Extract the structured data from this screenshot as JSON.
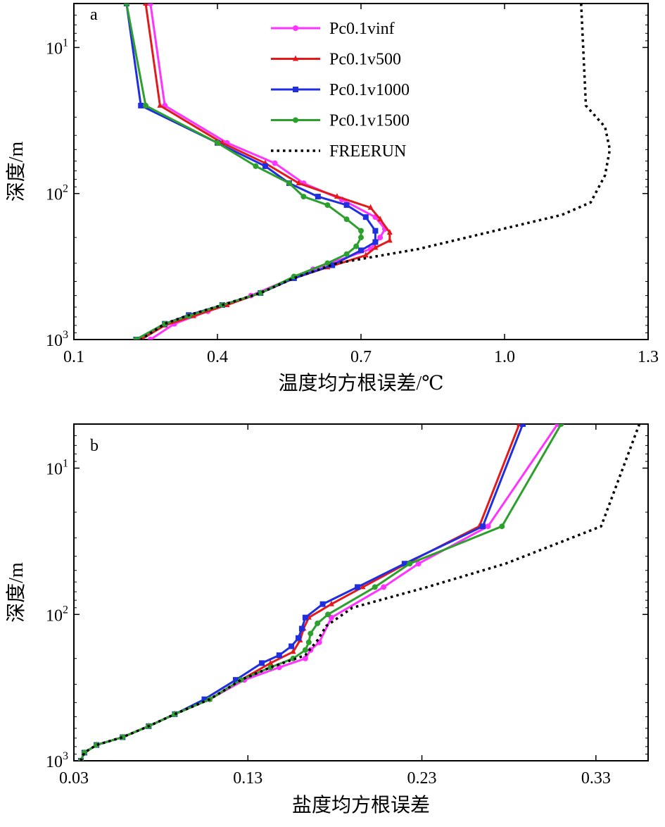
{
  "chart_data": [
    {
      "panel": "a",
      "type": "line",
      "xlabel": "温度均方根误差/℃",
      "ylabel": "深度/m",
      "xlim": [
        0.1,
        1.3
      ],
      "xticks": [
        "0.1",
        "0.4",
        "0.7",
        "1.0",
        "1.3"
      ],
      "ylim": [
        5,
        1000
      ],
      "yscale": "log",
      "yinverted": true,
      "yticks": [
        {
          "value": 10,
          "base": "10",
          "exp": "1"
        },
        {
          "value": 100,
          "base": "10",
          "exp": "2"
        },
        {
          "value": 1000,
          "base": "10",
          "exp": "3"
        }
      ],
      "legend": "top-center",
      "series": [
        {
          "name": "Pc0.1vinf",
          "color": "#ff33ff",
          "marker": "circle",
          "style": "solid",
          "points": [
            [
              0.26,
              5
            ],
            [
              0.29,
              25
            ],
            [
              0.42,
              45
            ],
            [
              0.52,
              62
            ],
            [
              0.58,
              85
            ],
            [
              0.66,
              110
            ],
            [
              0.73,
              145
            ],
            [
              0.75,
              175
            ],
            [
              0.74,
              200
            ],
            [
              0.72,
              240
            ],
            [
              0.6,
              330
            ],
            [
              0.47,
              500
            ],
            [
              0.38,
              640
            ],
            [
              0.31,
              780
            ],
            [
              0.26,
              1000
            ]
          ]
        },
        {
          "name": "Pc0.1v500",
          "color": "#e31a1c",
          "marker": "triangle",
          "style": "solid",
          "points": [
            [
              0.25,
              5
            ],
            [
              0.28,
              25
            ],
            [
              0.41,
              45
            ],
            [
              0.5,
              62
            ],
            [
              0.57,
              85
            ],
            [
              0.65,
              105
            ],
            [
              0.72,
              125
            ],
            [
              0.74,
              150
            ],
            [
              0.76,
              185
            ],
            [
              0.76,
              210
            ],
            [
              0.73,
              235
            ],
            [
              0.71,
              265
            ],
            [
              0.63,
              320
            ],
            [
              0.56,
              380
            ],
            [
              0.49,
              480
            ],
            [
              0.42,
              580
            ],
            [
              0.35,
              690
            ],
            [
              0.29,
              800
            ],
            [
              0.24,
              1000
            ]
          ]
        },
        {
          "name": "Pc0.1v1000",
          "color": "#1f2fe0",
          "marker": "square",
          "style": "solid",
          "points": [
            [
              0.21,
              5
            ],
            [
              0.24,
              25
            ],
            [
              0.4,
              45
            ],
            [
              0.5,
              65
            ],
            [
              0.55,
              85
            ],
            [
              0.61,
              105
            ],
            [
              0.67,
              120
            ],
            [
              0.71,
              145
            ],
            [
              0.73,
              180
            ],
            [
              0.73,
              215
            ],
            [
              0.7,
              245
            ],
            [
              0.64,
              310
            ],
            [
              0.56,
              380
            ],
            [
              0.49,
              480
            ],
            [
              0.41,
              580
            ],
            [
              0.34,
              680
            ],
            [
              0.29,
              780
            ],
            [
              0.23,
              1000
            ]
          ]
        },
        {
          "name": "Pc0.1v1500",
          "color": "#2ca02c",
          "marker": "circle",
          "style": "solid",
          "points": [
            [
              0.21,
              5
            ],
            [
              0.25,
              25
            ],
            [
              0.4,
              45
            ],
            [
              0.48,
              65
            ],
            [
              0.55,
              85
            ],
            [
              0.58,
              105
            ],
            [
              0.63,
              120
            ],
            [
              0.67,
              150
            ],
            [
              0.7,
              180
            ],
            [
              0.7,
              200
            ],
            [
              0.69,
              230
            ],
            [
              0.67,
              260
            ],
            [
              0.63,
              300
            ],
            [
              0.56,
              370
            ],
            [
              0.49,
              480
            ],
            [
              0.41,
              580
            ],
            [
              0.34,
              690
            ],
            [
              0.29,
              780
            ],
            [
              0.23,
              1000
            ]
          ]
        },
        {
          "name": "FREERUN",
          "color": "#000000",
          "marker": "none",
          "style": "dotted",
          "points": [
            [
              1.16,
              5
            ],
            [
              1.17,
              25
            ],
            [
              1.21,
              35
            ],
            [
              1.22,
              50
            ],
            [
              1.21,
              75
            ],
            [
              1.18,
              115
            ],
            [
              1.12,
              140
            ],
            [
              0.98,
              180
            ],
            [
              0.82,
              240
            ],
            [
              0.65,
              300
            ],
            [
              0.56,
              380
            ],
            [
              0.49,
              480
            ],
            [
              0.41,
              580
            ],
            [
              0.34,
              680
            ],
            [
              0.29,
              780
            ],
            [
              0.24,
              1000
            ]
          ]
        }
      ]
    },
    {
      "panel": "b",
      "type": "line",
      "xlabel": "盐度均方根误差",
      "ylabel": "深度/m",
      "xlim": [
        0.03,
        0.36
      ],
      "xticks": [
        "0.03",
        "0.13",
        "0.23",
        "0.33"
      ],
      "ylim": [
        5,
        1000
      ],
      "yscale": "log",
      "yinverted": true,
      "yticks": [
        {
          "value": 10,
          "base": "10",
          "exp": "1"
        },
        {
          "value": 100,
          "base": "10",
          "exp": "2"
        },
        {
          "value": 1000,
          "base": "10",
          "exp": "3"
        }
      ],
      "series": [
        {
          "name": "Pc0.1vinf",
          "color": "#ff33ff",
          "marker": "circle",
          "style": "solid",
          "points": [
            [
              0.308,
              5
            ],
            [
              0.268,
              25
            ],
            [
              0.228,
              45
            ],
            [
              0.208,
              65
            ],
            [
              0.178,
              105
            ],
            [
              0.171,
              155
            ],
            [
              0.166,
              175
            ],
            [
              0.163,
              200
            ],
            [
              0.148,
              230
            ],
            [
              0.128,
              280
            ],
            [
              0.108,
              380
            ],
            [
              0.088,
              480
            ],
            [
              0.073,
              580
            ],
            [
              0.058,
              690
            ],
            [
              0.043,
              780
            ],
            [
              0.036,
              880
            ],
            [
              0.034,
              1000
            ]
          ]
        },
        {
          "name": "Pc0.1v500",
          "color": "#e31a1c",
          "marker": "triangle",
          "style": "solid",
          "points": [
            [
              0.286,
              5
            ],
            [
              0.263,
              25
            ],
            [
              0.221,
              45
            ],
            [
              0.196,
              65
            ],
            [
              0.178,
              85
            ],
            [
              0.165,
              105
            ],
            [
              0.162,
              125
            ],
            [
              0.16,
              150
            ],
            [
              0.156,
              180
            ],
            [
              0.143,
              215
            ],
            [
              0.126,
              280
            ],
            [
              0.108,
              380
            ],
            [
              0.088,
              480
            ],
            [
              0.073,
              580
            ],
            [
              0.058,
              690
            ],
            [
              0.043,
              780
            ],
            [
              0.036,
              880
            ],
            [
              0.034,
              1000
            ]
          ]
        },
        {
          "name": "Pc0.1v1000",
          "color": "#1f2fe0",
          "marker": "square",
          "style": "solid",
          "points": [
            [
              0.288,
              5
            ],
            [
              0.265,
              25
            ],
            [
              0.22,
              45
            ],
            [
              0.193,
              65
            ],
            [
              0.173,
              85
            ],
            [
              0.163,
              105
            ],
            [
              0.161,
              125
            ],
            [
              0.159,
              145
            ],
            [
              0.155,
              165
            ],
            [
              0.148,
              190
            ],
            [
              0.138,
              215
            ],
            [
              0.123,
              280
            ],
            [
              0.105,
              380
            ],
            [
              0.088,
              480
            ],
            [
              0.073,
              580
            ],
            [
              0.058,
              690
            ],
            [
              0.043,
              780
            ],
            [
              0.036,
              880
            ],
            [
              0.034,
              1000
            ]
          ]
        },
        {
          "name": "Pc0.1v1500",
          "color": "#2ca02c",
          "marker": "circle",
          "style": "solid",
          "points": [
            [
              0.31,
              5
            ],
            [
              0.276,
              25
            ],
            [
              0.223,
              45
            ],
            [
              0.203,
              65
            ],
            [
              0.176,
              100
            ],
            [
              0.17,
              115
            ],
            [
              0.166,
              135
            ],
            [
              0.165,
              155
            ],
            [
              0.163,
              175
            ],
            [
              0.156,
              200
            ],
            [
              0.143,
              230
            ],
            [
              0.126,
              280
            ],
            [
              0.108,
              380
            ],
            [
              0.088,
              480
            ],
            [
              0.073,
              580
            ],
            [
              0.058,
              690
            ],
            [
              0.043,
              780
            ],
            [
              0.036,
              880
            ],
            [
              0.034,
              1000
            ]
          ]
        },
        {
          "name": "FREERUN",
          "color": "#000000",
          "marker": "none",
          "style": "dotted",
          "points": [
            [
              0.355,
              5
            ],
            [
              0.333,
              25
            ],
            [
              0.278,
              45
            ],
            [
              0.233,
              65
            ],
            [
              0.19,
              90
            ],
            [
              0.175,
              120
            ],
            [
              0.17,
              150
            ],
            [
              0.163,
              190
            ],
            [
              0.143,
              230
            ],
            [
              0.126,
              280
            ],
            [
              0.108,
              380
            ],
            [
              0.088,
              480
            ],
            [
              0.073,
              580
            ],
            [
              0.058,
              690
            ],
            [
              0.043,
              780
            ],
            [
              0.036,
              880
            ],
            [
              0.034,
              1000
            ]
          ]
        }
      ]
    }
  ]
}
